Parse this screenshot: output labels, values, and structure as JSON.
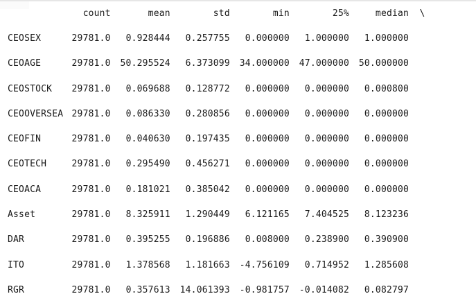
{
  "colors": {
    "background": "#ffffff",
    "text": "#1a1a1a",
    "top_border": "#e6e6e6"
  },
  "table": {
    "headers": [
      "count",
      "mean",
      "std",
      "min",
      "25%",
      "median"
    ],
    "continuation": "\\",
    "rows": [
      {
        "label": "CEOSEX",
        "values": [
          "29781.0",
          "0.928444",
          "0.257755",
          "0.000000",
          "1.000000",
          "1.000000"
        ]
      },
      {
        "label": "CEOAGE",
        "values": [
          "29781.0",
          "50.295524",
          "6.373099",
          "34.000000",
          "47.000000",
          "50.000000"
        ]
      },
      {
        "label": "CEOSTOCK",
        "values": [
          "29781.0",
          "0.069688",
          "0.128772",
          "0.000000",
          "0.000000",
          "0.000800"
        ]
      },
      {
        "label": "CEOOVERSEA",
        "values": [
          "29781.0",
          "0.086330",
          "0.280856",
          "0.000000",
          "0.000000",
          "0.000000"
        ]
      },
      {
        "label": "CEOFIN",
        "values": [
          "29781.0",
          "0.040630",
          "0.197435",
          "0.000000",
          "0.000000",
          "0.000000"
        ]
      },
      {
        "label": "CEOTECH",
        "values": [
          "29781.0",
          "0.295490",
          "0.456271",
          "0.000000",
          "0.000000",
          "0.000000"
        ]
      },
      {
        "label": "CEOACA",
        "values": [
          "29781.0",
          "0.181021",
          "0.385042",
          "0.000000",
          "0.000000",
          "0.000000"
        ]
      },
      {
        "label": "Asset",
        "values": [
          "29781.0",
          "8.325911",
          "1.290449",
          "6.121165",
          "7.404525",
          "8.123236"
        ]
      },
      {
        "label": "DAR",
        "values": [
          "29781.0",
          "0.395255",
          "0.196886",
          "0.008000",
          "0.238900",
          "0.390900"
        ]
      },
      {
        "label": "ITO",
        "values": [
          "29781.0",
          "1.378568",
          "1.181663",
          "-4.756109",
          "0.714952",
          "1.285608"
        ]
      },
      {
        "label": "RGR",
        "values": [
          "29781.0",
          "0.357613",
          "14.061393",
          "-0.981757",
          "-0.014082",
          "0.082797"
        ]
      }
    ]
  }
}
